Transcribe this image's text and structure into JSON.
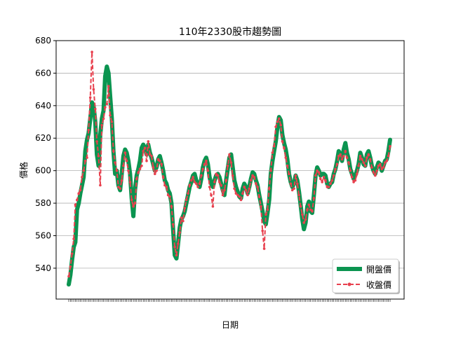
{
  "chart_data": {
    "type": "line",
    "title": "110年2330股市趨勢圖",
    "xlabel": "日期",
    "ylabel": "價格",
    "ylim": [
      521,
      680
    ],
    "yticks": [
      540,
      560,
      580,
      600,
      620,
      640,
      660,
      680
    ],
    "grid": "horizontal",
    "legend_position": "lower-right",
    "colors": {
      "open": "#0b9450",
      "close": "#e8404e"
    },
    "legend": [
      "開盤價",
      "收盤價"
    ],
    "series": [
      {
        "name": "開盤價",
        "values": [
          530,
          536,
          545,
          553,
          556,
          576,
          580,
          586,
          591,
          596,
          612,
          619,
          623,
          632,
          642,
          640,
          630,
          610,
          603,
          622,
          632,
          637,
          658,
          664,
          660,
          646,
          632,
          612,
          598,
          600,
          591,
          588,
          598,
          609,
          613,
          611,
          606,
          598,
          583,
          572,
          588,
          597,
          601,
          606,
          614,
          616,
          614,
          610,
          616,
          611,
          608,
          604,
          600,
          602,
          607,
          609,
          605,
          600,
          594,
          592,
          588,
          586,
          580,
          564,
          548,
          546,
          555,
          565,
          570,
          572,
          575,
          580,
          585,
          590,
          593,
          597,
          598,
          594,
          592,
          590,
          595,
          602,
          606,
          608,
          604,
          596,
          592,
          590,
          594,
          597,
          598,
          596,
          592,
          588,
          585,
          594,
          601,
          608,
          610,
          602,
          594,
          590,
          587,
          584,
          583,
          589,
          592,
          590,
          586,
          590,
          595,
          599,
          598,
          594,
          591,
          585,
          580,
          575,
          569,
          567,
          574,
          582,
          598,
          606,
          612,
          618,
          627,
          633,
          631,
          622,
          617,
          613,
          607,
          598,
          593,
          590,
          592,
          597,
          594,
          587,
          579,
          570,
          564,
          568,
          578,
          581,
          575,
          574,
          585,
          597,
          602,
          600,
          597,
          598,
          598,
          597,
          592,
          590,
          592,
          593,
          598,
          601,
          606,
          612,
          610,
          606,
          613,
          617,
          611,
          607,
          601,
          598,
          595,
          597,
          600,
          604,
          611,
          608,
          604,
          603,
          610,
          612,
          608,
          603,
          600,
          598,
          602,
          605,
          604,
          600,
          603,
          606,
          607,
          612,
          619
        ]
      },
      {
        "name": "收盤價",
        "values": [
          535,
          541,
          549,
          558,
          579,
          582,
          586,
          588,
          596,
          600,
          606,
          608,
          625,
          645,
          673,
          650,
          638,
          618,
          609,
          591,
          628,
          632,
          639,
          641,
          652,
          634,
          630,
          612,
          605,
          600,
          590,
          589,
          594,
          603,
          611,
          606,
          600,
          593,
          582,
          578,
          580,
          595,
          599,
          601,
          603,
          612,
          614,
          606,
          618,
          610,
          609,
          602,
          598,
          600,
          607,
          606,
          604,
          596,
          591,
          590,
          585,
          584,
          578,
          567,
          553,
          548,
          555,
          562,
          571,
          569,
          577,
          582,
          586,
          591,
          594,
          596,
          593,
          592,
          590,
          592,
          597,
          601,
          604,
          606,
          600,
          590,
          585,
          578,
          593,
          598,
          597,
          593,
          591,
          585,
          588,
          594,
          603,
          610,
          605,
          597,
          589,
          586,
          585,
          584,
          582,
          586,
          590,
          588,
          585,
          589,
          594,
          597,
          596,
          592,
          590,
          584,
          578,
          563,
          552,
          573,
          576,
          589,
          600,
          611,
          615,
          627,
          630,
          632,
          628,
          618,
          614,
          608,
          603,
          598,
          592,
          588,
          589,
          597,
          592,
          585,
          578,
          573,
          568,
          570,
          576,
          579,
          576,
          575,
          583,
          597,
          600,
          599,
          595,
          593,
          596,
          594,
          590,
          590,
          592,
          594,
          597,
          601,
          604,
          609,
          610,
          607,
          609,
          612,
          608,
          605,
          600,
          596,
          593,
          594,
          598,
          603,
          609,
          607,
          605,
          603,
          608,
          610,
          607,
          602,
          599,
          597,
          600,
          603,
          604,
          601,
          602,
          605,
          606,
          609,
          615
        ]
      }
    ]
  }
}
